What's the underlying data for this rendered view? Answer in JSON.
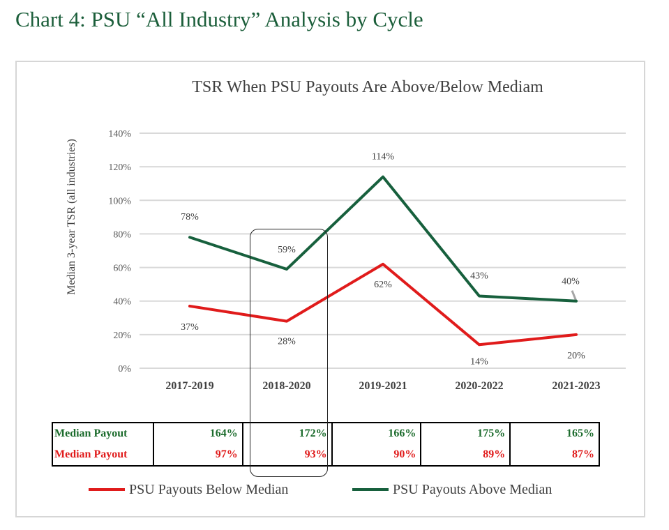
{
  "page": {
    "title": "Chart 4: PSU “All Industry” Analysis by Cycle"
  },
  "colors": {
    "title": "#1b5e3a",
    "below": "#e01b1b",
    "above": "#17603d",
    "table_above": "#1b6b2c",
    "table_below": "#e01b1b",
    "grid": "#d9d9d9",
    "connector": "#a6a6a6"
  },
  "chart_data": {
    "type": "line",
    "title": "TSR When PSU Payouts Are Above/Below Mediam",
    "xlabel": "",
    "ylabel": "Median 3-year TSR (all industries)",
    "ylim": [
      0,
      140
    ],
    "yticks": [
      0,
      20,
      40,
      60,
      80,
      100,
      120,
      140
    ],
    "ytick_labels": [
      "0%",
      "20%",
      "40%",
      "60%",
      "80%",
      "100%",
      "120%",
      "140%"
    ],
    "grid": true,
    "legend_position": "bottom",
    "categories": [
      "2017-2019",
      "2018-2020",
      "2019-2021",
      "2020-2022",
      "2021-2023"
    ],
    "series": [
      {
        "name": "PSU Payouts Below Median",
        "color": "#e01b1b",
        "values": [
          37,
          28,
          62,
          14,
          20
        ],
        "labels": [
          "37%",
          "28%",
          "62%",
          "14%",
          "20%"
        ]
      },
      {
        "name": "PSU Payouts Above Median",
        "color": "#17603d",
        "values": [
          78,
          59,
          114,
          43,
          40
        ],
        "labels": [
          "78%",
          "59%",
          "114%",
          "43%",
          "40%"
        ]
      }
    ]
  },
  "table": {
    "rows": [
      {
        "label": "Median Payout",
        "color": "#1b6b2c",
        "values": [
          "164%",
          "172%",
          "166%",
          "175%",
          "165%"
        ]
      },
      {
        "label": "Median Payout",
        "color": "#e01b1b",
        "values": [
          "97%",
          "93%",
          "90%",
          "89%",
          "87%"
        ]
      }
    ]
  },
  "legend": {
    "below": "PSU Payouts Below Median",
    "above": "PSU Payouts Above Median"
  }
}
